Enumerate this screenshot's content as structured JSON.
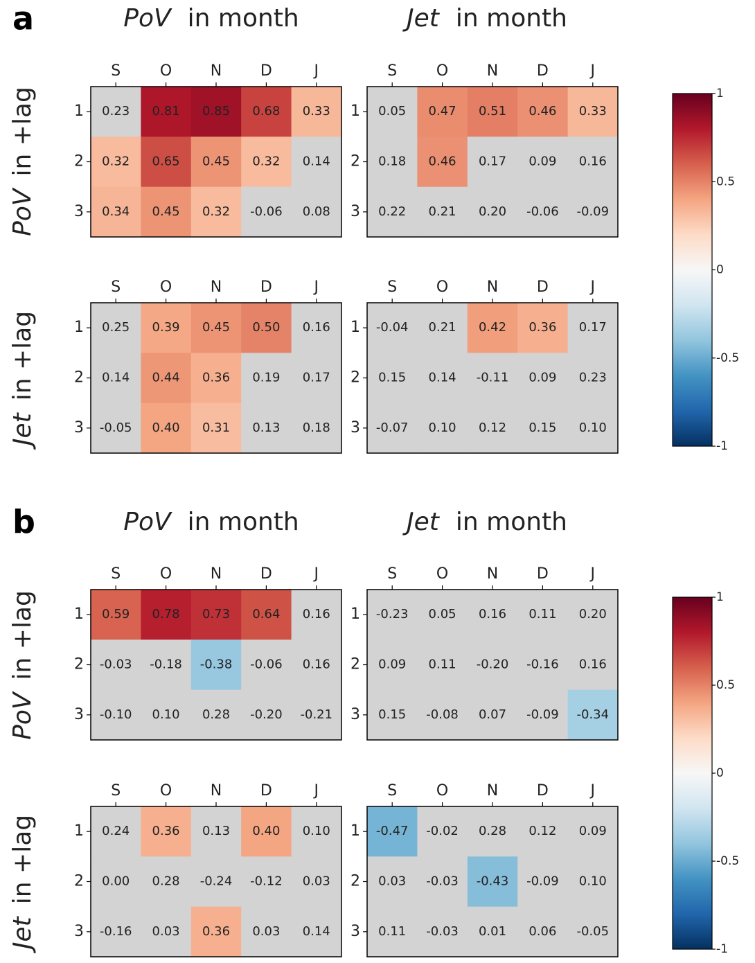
{
  "figure": {
    "panels": [
      {
        "label": "a",
        "column_titles": [
          {
            "em": "PoV",
            "text": "in month"
          },
          {
            "em": "Jet",
            "text": "in month"
          }
        ],
        "row_titles": [
          {
            "em": "PoV",
            "text": "in +lag"
          },
          {
            "em": "Jet",
            "text": "in +lag"
          }
        ]
      },
      {
        "label": "b",
        "column_titles": [
          {
            "em": "PoV",
            "text": "in month"
          },
          {
            "em": "Jet",
            "text": "in month"
          }
        ],
        "row_titles": [
          {
            "em": "PoV",
            "text": "in +lag"
          },
          {
            "em": "Jet",
            "text": "in +lag"
          }
        ]
      }
    ]
  },
  "chart_data": [
    {
      "type": "heatmap",
      "x": [
        "S",
        "O",
        "N",
        "D",
        "J"
      ],
      "y": [
        "1",
        "2",
        "3"
      ],
      "clim": [
        -1,
        1
      ],
      "colormap": "RdBu_r",
      "mask_color": "#d3d3d3",
      "values": [
        [
          0.23,
          0.81,
          0.85,
          0.68,
          0.33
        ],
        [
          0.32,
          0.65,
          0.45,
          0.32,
          0.14
        ],
        [
          0.34,
          0.45,
          0.32,
          -0.06,
          0.08
        ]
      ],
      "value_labels": [
        [
          "0.23",
          "0.81",
          "0.85",
          "0.68",
          "0.33"
        ],
        [
          "0.32",
          "0.65",
          "0.45",
          "0.32",
          "0.14"
        ],
        [
          "0.34",
          "0.45",
          "0.32",
          "-0.06",
          "0.08"
        ]
      ],
      "significant": [
        [
          false,
          true,
          true,
          true,
          true
        ],
        [
          true,
          true,
          true,
          true,
          false
        ],
        [
          true,
          true,
          true,
          false,
          false
        ]
      ]
    },
    {
      "type": "heatmap",
      "x": [
        "S",
        "O",
        "N",
        "D",
        "J"
      ],
      "y": [
        "1",
        "2",
        "3"
      ],
      "clim": [
        -1,
        1
      ],
      "colormap": "RdBu_r",
      "mask_color": "#d3d3d3",
      "values": [
        [
          0.05,
          0.47,
          0.51,
          0.46,
          0.33
        ],
        [
          0.18,
          0.46,
          0.17,
          0.09,
          0.16
        ],
        [
          0.22,
          0.21,
          0.2,
          -0.06,
          -0.09
        ]
      ],
      "value_labels": [
        [
          "0.05",
          "0.47",
          "0.51",
          "0.46",
          "0.33"
        ],
        [
          "0.18",
          "0.46",
          "0.17",
          "0.09",
          "0.16"
        ],
        [
          "0.22",
          "0.21",
          "0.20",
          "-0.06",
          "-0.09"
        ]
      ],
      "significant": [
        [
          false,
          true,
          true,
          true,
          true
        ],
        [
          false,
          true,
          false,
          false,
          false
        ],
        [
          false,
          false,
          false,
          false,
          false
        ]
      ]
    },
    {
      "type": "heatmap",
      "x": [
        "S",
        "O",
        "N",
        "D",
        "J"
      ],
      "y": [
        "1",
        "2",
        "3"
      ],
      "clim": [
        -1,
        1
      ],
      "colormap": "RdBu_r",
      "mask_color": "#d3d3d3",
      "values": [
        [
          0.25,
          0.39,
          0.45,
          0.5,
          0.16
        ],
        [
          0.14,
          0.44,
          0.36,
          0.19,
          0.17
        ],
        [
          -0.05,
          0.4,
          0.31,
          0.13,
          0.18
        ]
      ],
      "value_labels": [
        [
          "0.25",
          "0.39",
          "0.45",
          "0.50",
          "0.16"
        ],
        [
          "0.14",
          "0.44",
          "0.36",
          "0.19",
          "0.17"
        ],
        [
          "-0.05",
          "0.40",
          "0.31",
          "0.13",
          "0.18"
        ]
      ],
      "significant": [
        [
          false,
          true,
          true,
          true,
          false
        ],
        [
          false,
          true,
          true,
          false,
          false
        ],
        [
          false,
          true,
          true,
          false,
          false
        ]
      ]
    },
    {
      "type": "heatmap",
      "x": [
        "S",
        "O",
        "N",
        "D",
        "J"
      ],
      "y": [
        "1",
        "2",
        "3"
      ],
      "clim": [
        -1,
        1
      ],
      "colormap": "RdBu_r",
      "mask_color": "#d3d3d3",
      "values": [
        [
          -0.04,
          0.21,
          0.42,
          0.36,
          0.17
        ],
        [
          0.15,
          0.14,
          -0.11,
          0.09,
          0.23
        ],
        [
          -0.07,
          0.1,
          0.12,
          0.15,
          0.1
        ]
      ],
      "value_labels": [
        [
          "-0.04",
          "0.21",
          "0.42",
          "0.36",
          "0.17"
        ],
        [
          "0.15",
          "0.14",
          "-0.11",
          "0.09",
          "0.23"
        ],
        [
          "-0.07",
          "0.10",
          "0.12",
          "0.15",
          "0.10"
        ]
      ],
      "significant": [
        [
          false,
          false,
          true,
          true,
          false
        ],
        [
          false,
          false,
          false,
          false,
          false
        ],
        [
          false,
          false,
          false,
          false,
          false
        ]
      ]
    },
    {
      "type": "heatmap",
      "x": [
        "S",
        "O",
        "N",
        "D",
        "J"
      ],
      "y": [
        "1",
        "2",
        "3"
      ],
      "clim": [
        -1,
        1
      ],
      "colormap": "RdBu_r",
      "mask_color": "#d3d3d3",
      "values": [
        [
          0.59,
          0.78,
          0.73,
          0.64,
          0.16
        ],
        [
          -0.03,
          -0.18,
          -0.38,
          -0.06,
          0.16
        ],
        [
          -0.1,
          0.1,
          0.28,
          -0.2,
          -0.21
        ]
      ],
      "value_labels": [
        [
          "0.59",
          "0.78",
          "0.73",
          "0.64",
          "0.16"
        ],
        [
          "-0.03",
          "-0.18",
          "-0.38",
          "-0.06",
          "0.16"
        ],
        [
          "-0.10",
          "0.10",
          "0.28",
          "-0.20",
          "-0.21"
        ]
      ],
      "significant": [
        [
          true,
          true,
          true,
          true,
          false
        ],
        [
          false,
          false,
          true,
          false,
          false
        ],
        [
          false,
          false,
          false,
          false,
          false
        ]
      ]
    },
    {
      "type": "heatmap",
      "x": [
        "S",
        "O",
        "N",
        "D",
        "J"
      ],
      "y": [
        "1",
        "2",
        "3"
      ],
      "clim": [
        -1,
        1
      ],
      "colormap": "RdBu_r",
      "mask_color": "#d3d3d3",
      "values": [
        [
          -0.23,
          0.05,
          0.16,
          0.11,
          0.2
        ],
        [
          0.09,
          0.11,
          -0.2,
          -0.16,
          0.16
        ],
        [
          0.15,
          -0.08,
          0.07,
          -0.09,
          -0.34
        ]
      ],
      "value_labels": [
        [
          "-0.23",
          "0.05",
          "0.16",
          "0.11",
          "0.20"
        ],
        [
          "0.09",
          "0.11",
          "-0.20",
          "-0.16",
          "0.16"
        ],
        [
          "0.15",
          "-0.08",
          "0.07",
          "-0.09",
          "-0.34"
        ]
      ],
      "significant": [
        [
          false,
          false,
          false,
          false,
          false
        ],
        [
          false,
          false,
          false,
          false,
          false
        ],
        [
          false,
          false,
          false,
          false,
          true
        ]
      ]
    },
    {
      "type": "heatmap",
      "x": [
        "S",
        "O",
        "N",
        "D",
        "J"
      ],
      "y": [
        "1",
        "2",
        "3"
      ],
      "clim": [
        -1,
        1
      ],
      "colormap": "RdBu_r",
      "mask_color": "#d3d3d3",
      "values": [
        [
          0.24,
          0.36,
          0.13,
          0.4,
          0.1
        ],
        [
          0,
          0.28,
          -0.24,
          -0.12,
          0.03
        ],
        [
          -0.16,
          0.03,
          0.36,
          0.03,
          0.14
        ]
      ],
      "value_labels": [
        [
          "0.24",
          "0.36",
          "0.13",
          "0.40",
          "0.10"
        ],
        [
          "0.00",
          "0.28",
          "-0.24",
          "-0.12",
          "0.03"
        ],
        [
          "-0.16",
          "0.03",
          "0.36",
          "0.03",
          "0.14"
        ]
      ],
      "significant": [
        [
          false,
          true,
          false,
          true,
          false
        ],
        [
          false,
          false,
          false,
          false,
          false
        ],
        [
          false,
          false,
          true,
          false,
          false
        ]
      ]
    },
    {
      "type": "heatmap",
      "x": [
        "S",
        "O",
        "N",
        "D",
        "J"
      ],
      "y": [
        "1",
        "2",
        "3"
      ],
      "clim": [
        -1,
        1
      ],
      "colormap": "RdBu_r",
      "mask_color": "#d3d3d3",
      "values": [
        [
          -0.47,
          -0.02,
          0.28,
          0.12,
          0.09
        ],
        [
          0.03,
          -0.03,
          -0.43,
          -0.09,
          0.1
        ],
        [
          0.11,
          -0.03,
          0.01,
          0.06,
          -0.05
        ]
      ],
      "value_labels": [
        [
          "-0.47",
          "-0.02",
          "0.28",
          "0.12",
          "0.09"
        ],
        [
          "0.03",
          "-0.03",
          "-0.43",
          "-0.09",
          "0.10"
        ],
        [
          "0.11",
          "-0.03",
          "0.01",
          "0.06",
          "-0.05"
        ]
      ],
      "significant": [
        [
          true,
          false,
          false,
          false,
          false
        ],
        [
          false,
          false,
          true,
          false,
          false
        ],
        [
          false,
          false,
          false,
          false,
          false
        ]
      ]
    },
    {
      "type": "colorbar",
      "clim": [
        -1,
        1
      ],
      "colormap": "RdBu_r",
      "ticks": [
        1,
        0.5,
        0,
        -0.5,
        -1
      ]
    },
    {
      "type": "colorbar",
      "clim": [
        -1,
        1
      ],
      "colormap": "RdBu_r",
      "ticks": [
        1,
        0.5,
        0,
        -0.5,
        -1
      ]
    }
  ]
}
